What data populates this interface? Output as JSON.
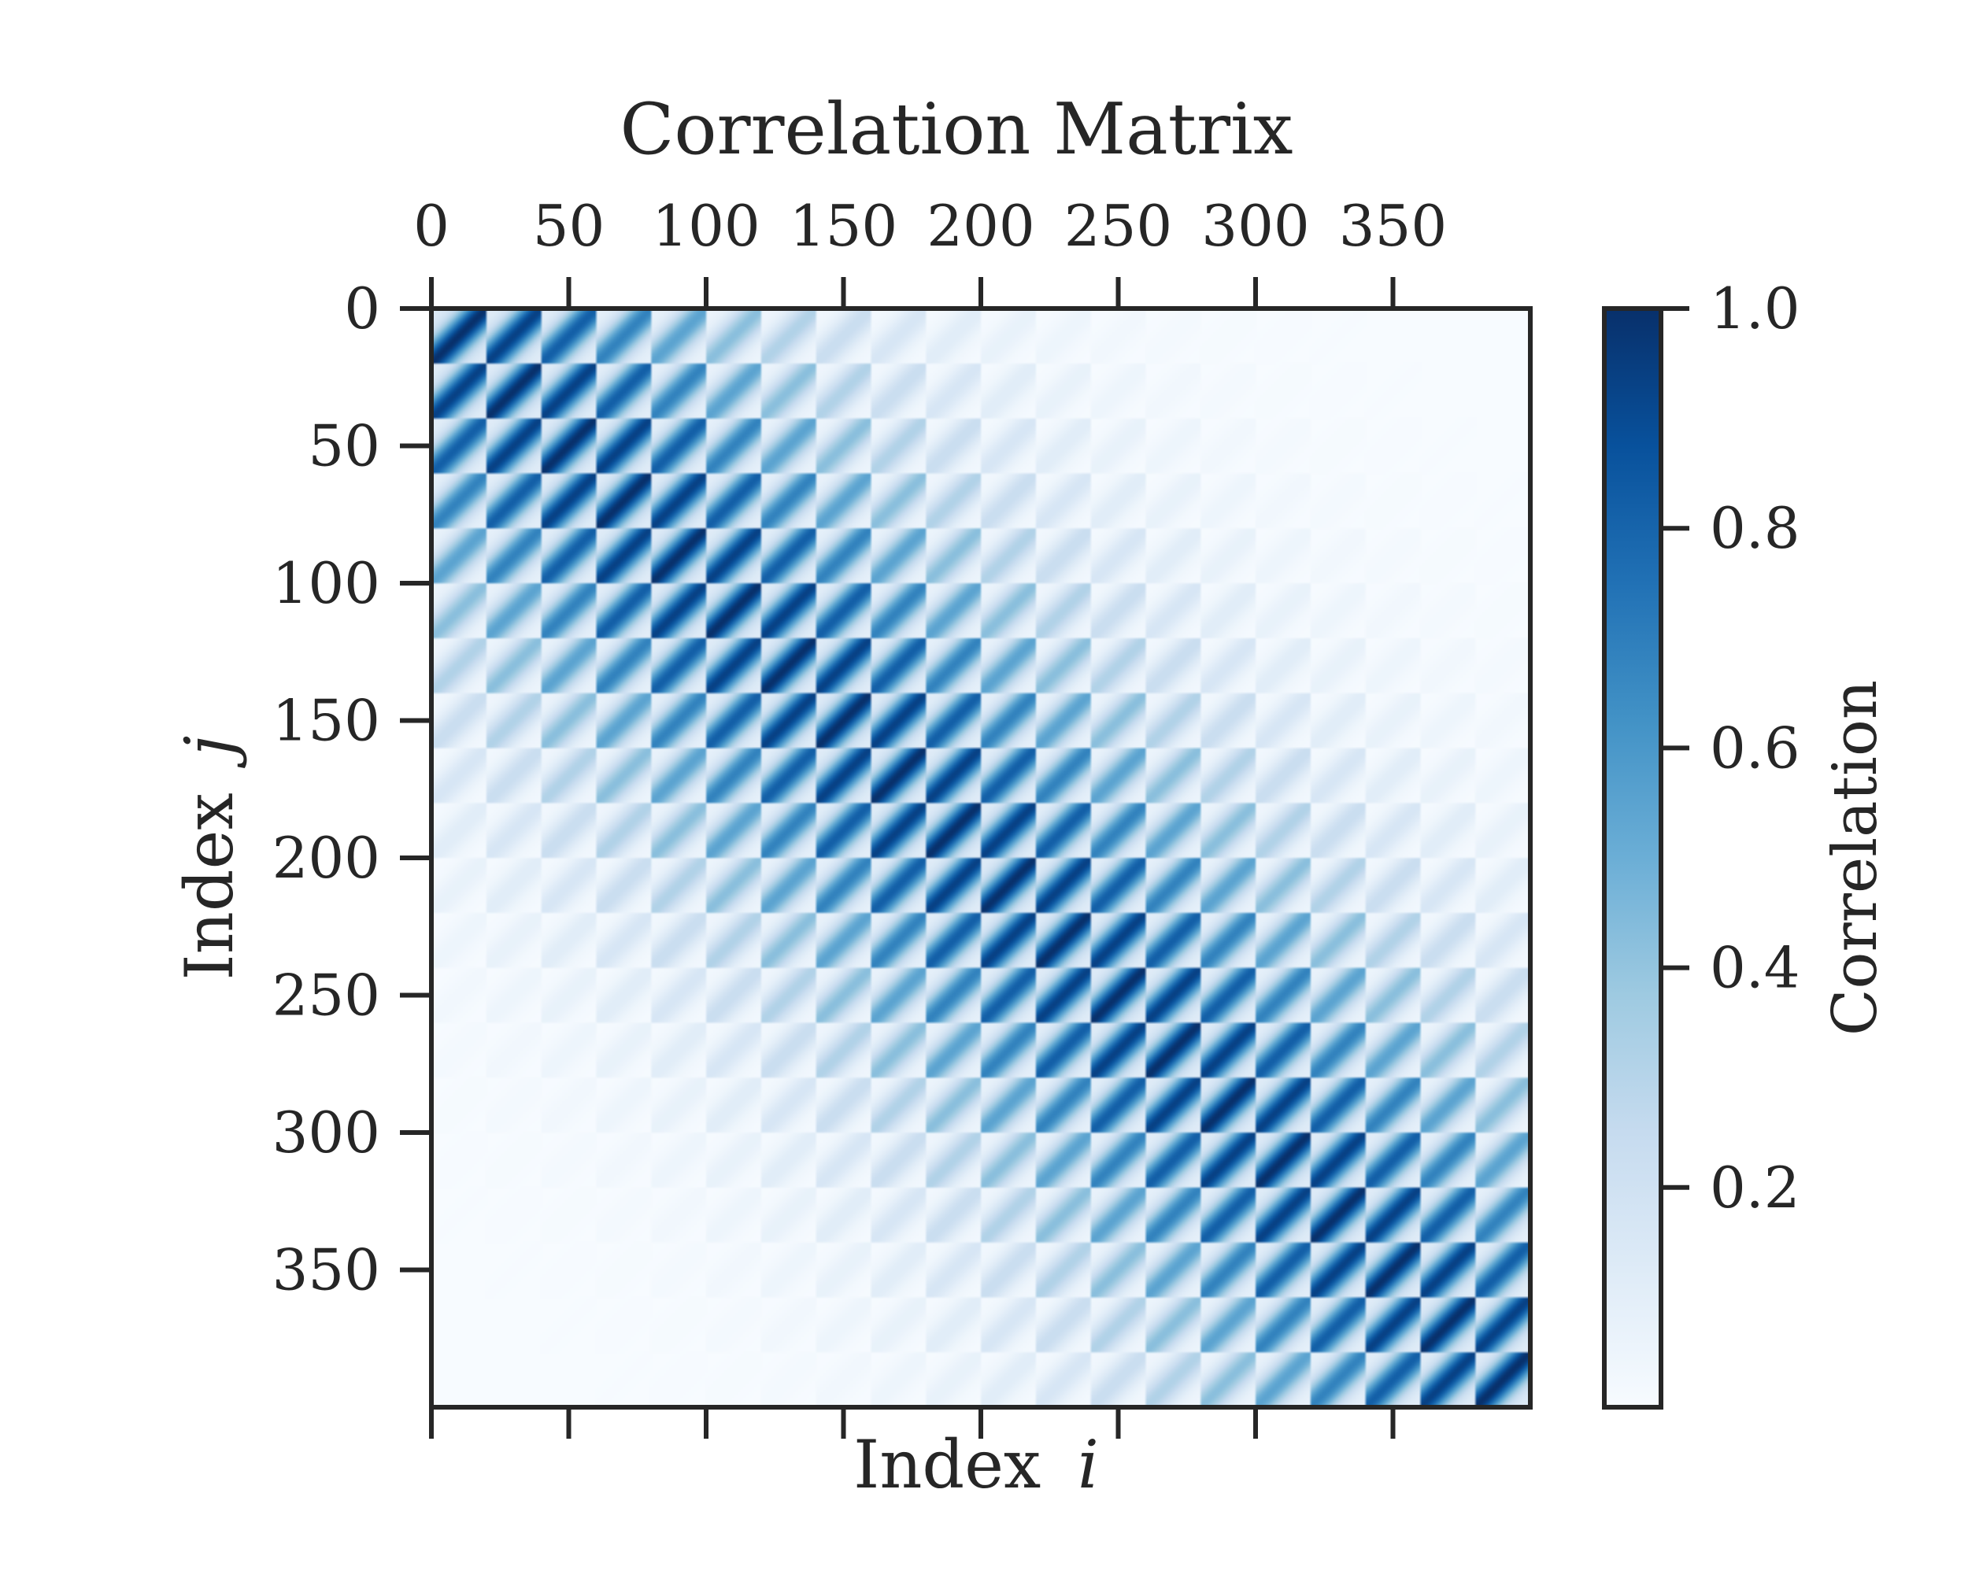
{
  "chart_data": {
    "type": "heatmap",
    "title": "Correlation Matrix",
    "xlabel_prefix": "Index",
    "xlabel_var": "i",
    "ylabel_prefix": "Index",
    "ylabel_var": "j",
    "size": 400,
    "x_ticks": [
      0,
      50,
      100,
      150,
      200,
      250,
      300,
      350
    ],
    "x_tick_labels": [
      "0",
      "50",
      "100",
      "150",
      "200",
      "250",
      "300",
      "350"
    ],
    "y_ticks": [
      0,
      50,
      100,
      150,
      200,
      250,
      300,
      350
    ],
    "y_tick_labels": [
      "0",
      "50",
      "100",
      "150",
      "200",
      "250",
      "300",
      "350"
    ],
    "xlim": [
      0,
      400
    ],
    "ylim": [
      0,
      400
    ],
    "y_inverted": true,
    "x_axis_labels_position": "top",
    "colormap": "Blues",
    "colormap_stops": [
      "#f7fbff",
      "#deebf7",
      "#c6dbef",
      "#9ecae1",
      "#6baed6",
      "#4292c6",
      "#2171b5",
      "#08519c",
      "#08306b"
    ],
    "block_size": 20,
    "pattern": "block-banded correlation decaying with distance from the main diagonal; within each 20x20 block the correlation decays along the anti-diagonal direction",
    "decay_length": 110,
    "value_range": [
      0.0,
      1.0
    ],
    "colorbar": {
      "label": "Correlation",
      "position": "right",
      "ticks": [
        0.2,
        0.4,
        0.6,
        0.8,
        1.0
      ],
      "tick_labels": [
        "0.2",
        "0.4",
        "0.6",
        "0.8",
        "1.0"
      ],
      "range": [
        0.0,
        1.0
      ]
    },
    "grid": false
  }
}
